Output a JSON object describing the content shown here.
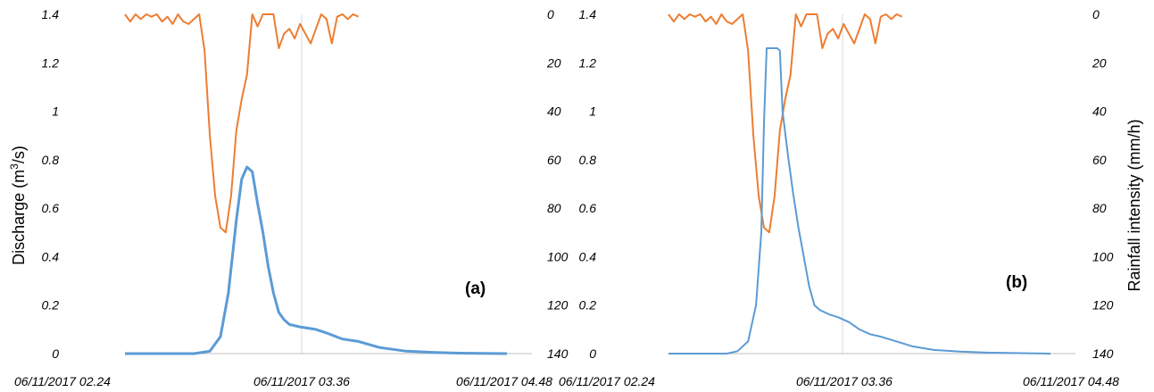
{
  "chart_data": [
    {
      "type": "line",
      "panel_label": "(a)",
      "ylabel": "Discharge (m³/s)",
      "ylabel_parts": [
        "Discharge (m",
        "3",
        "/s)"
      ],
      "y2label": "",
      "ylim": [
        0,
        1.4
      ],
      "y2lim": [
        140,
        0
      ],
      "y_ticks": [
        "0",
        "0.2",
        "0.4",
        "0.6",
        "0.8",
        "1",
        "1.2",
        "1.4"
      ],
      "y2_ticks": [
        "140",
        "120",
        "100",
        "80",
        "60",
        "40",
        "20",
        "0"
      ],
      "x_ticks": [
        "06/11/2017 02.24",
        "06/11/2017 03.36",
        "06/11/2017 04.48"
      ],
      "xlim_minutes": [
        144,
        288
      ],
      "grid": true,
      "series": [
        {
          "axis": "right",
          "color": "#ED7D31",
          "x_minutes": [
            144,
            146,
            148,
            150,
            152,
            154,
            156,
            158,
            160,
            162,
            164,
            166,
            168,
            170,
            172,
            174,
            176,
            178,
            180,
            182,
            184,
            186,
            188,
            190,
            192,
            194,
            196,
            198,
            200,
            202,
            204,
            206,
            208,
            210,
            212,
            214,
            216,
            218,
            220,
            222,
            224,
            226,
            228,
            230,
            232
          ],
          "values": [
            0,
            3,
            0,
            2,
            0,
            1,
            0,
            3,
            1,
            4,
            0,
            3,
            4,
            2,
            0,
            15,
            50,
            75,
            88,
            90,
            75,
            48,
            35,
            25,
            0,
            5,
            0,
            0,
            0,
            14,
            8,
            6,
            10,
            4,
            8,
            12,
            6,
            0,
            2,
            12,
            1,
            0,
            2,
            0,
            1
          ]
        },
        {
          "axis": "left",
          "color": "#5B9BD5",
          "x_minutes": [
            144,
            170,
            176,
            180,
            183,
            186,
            188,
            190,
            192,
            194,
            196,
            198,
            200,
            202,
            204,
            206,
            210,
            216,
            220,
            226,
            232,
            240,
            250,
            260,
            270,
            288
          ],
          "values": [
            0,
            0,
            0.01,
            0.07,
            0.25,
            0.55,
            0.72,
            0.77,
            0.75,
            0.62,
            0.5,
            0.36,
            0.25,
            0.17,
            0.14,
            0.12,
            0.11,
            0.1,
            0.085,
            0.06,
            0.05,
            0.025,
            0.01,
            0.005,
            0.002,
            0
          ]
        }
      ]
    },
    {
      "type": "line",
      "panel_label": "(b)",
      "ylabel": "",
      "y2label": "Rainfall intensity (mm/h)",
      "ylim": [
        0,
        1.4
      ],
      "y2lim": [
        140,
        0
      ],
      "y_ticks": [
        "0",
        "0.2",
        "0.4",
        "0.6",
        "0.8",
        "1",
        "1.2",
        "1.4"
      ],
      "y2_ticks": [
        "140",
        "120",
        "100",
        "80",
        "60",
        "40",
        "20",
        "0"
      ],
      "x_ticks": [
        "06/11/2017 02.24",
        "06/11/2017 03.36",
        "06/11/2017 04.48"
      ],
      "xlim_minutes": [
        144,
        288
      ],
      "grid": true,
      "series": [
        {
          "axis": "right",
          "color": "#ED7D31",
          "x_minutes": [
            144,
            146,
            148,
            150,
            152,
            154,
            156,
            158,
            160,
            162,
            164,
            166,
            168,
            170,
            172,
            174,
            176,
            178,
            180,
            182,
            184,
            186,
            188,
            190,
            192,
            194,
            196,
            198,
            200,
            202,
            204,
            206,
            208,
            210,
            212,
            214,
            216,
            218,
            220,
            222,
            224,
            226,
            228,
            230,
            232
          ],
          "values": [
            0,
            3,
            0,
            2,
            0,
            1,
            0,
            3,
            1,
            4,
            0,
            3,
            4,
            2,
            0,
            15,
            50,
            75,
            88,
            90,
            75,
            48,
            35,
            25,
            0,
            5,
            0,
            0,
            0,
            14,
            8,
            6,
            10,
            4,
            8,
            12,
            6,
            0,
            2,
            12,
            1,
            0,
            2,
            0,
            1
          ]
        },
        {
          "axis": "left",
          "color": "#5B9BD5",
          "x_minutes": [
            144,
            166,
            170,
            174,
            177,
            179,
            180,
            181,
            183,
            185,
            186,
            187,
            189,
            191,
            193,
            195,
            197,
            199,
            201,
            203,
            205,
            208,
            212,
            216,
            220,
            224,
            230,
            236,
            244,
            254,
            264,
            288
          ],
          "values": [
            0,
            0,
            0.01,
            0.05,
            0.2,
            0.5,
            0.95,
            1.26,
            1.26,
            1.26,
            1.25,
            1.0,
            0.82,
            0.66,
            0.52,
            0.4,
            0.28,
            0.2,
            0.18,
            0.17,
            0.16,
            0.15,
            0.13,
            0.1,
            0.08,
            0.07,
            0.05,
            0.03,
            0.015,
            0.008,
            0.004,
            0
          ]
        }
      ]
    }
  ]
}
